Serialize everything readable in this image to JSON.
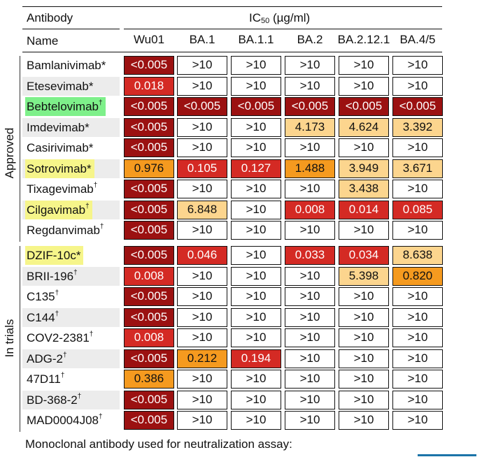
{
  "header": {
    "antibody_label": "Antibody",
    "ic50_label_main": "IC",
    "ic50_label_sub": "50",
    "ic50_label_unit": " (µg/ml)",
    "name_label": "Name"
  },
  "columns": [
    "Wu01",
    "BA.1",
    "BA.1.1",
    "BA.2",
    "BA.2.12.1",
    "BA.4/5"
  ],
  "groups": [
    {
      "label": "Approved",
      "rows": [
        {
          "name": "Bamlanivimab",
          "mark": "*",
          "sup": false,
          "highlight": "",
          "values": [
            "<0.005",
            ">10",
            ">10",
            ">10",
            ">10",
            ">10"
          ]
        },
        {
          "name": "Etesevimab",
          "mark": "*",
          "sup": false,
          "highlight": "",
          "values": [
            "0.018",
            ">10",
            ">10",
            ">10",
            ">10",
            ">10"
          ]
        },
        {
          "name": "Bebtelovimab",
          "mark": "†",
          "sup": true,
          "highlight": "green",
          "values": [
            "<0.005",
            "<0.005",
            "<0.005",
            "<0.005",
            "<0.005",
            "<0.005"
          ]
        },
        {
          "name": "Imdevimab",
          "mark": "*",
          "sup": false,
          "highlight": "",
          "values": [
            "<0.005",
            ">10",
            ">10",
            "4.173",
            "4.624",
            "3.392"
          ]
        },
        {
          "name": "Casirivimab",
          "mark": "*",
          "sup": false,
          "highlight": "",
          "values": [
            "<0.005",
            ">10",
            ">10",
            ">10",
            ">10",
            ">10"
          ]
        },
        {
          "name": "Sotrovimab",
          "mark": "*",
          "sup": false,
          "highlight": "yellow",
          "values": [
            "0.976",
            "0.105",
            "0.127",
            "1.488",
            "3.949",
            "3.671"
          ]
        },
        {
          "name": "Tixagevimab",
          "mark": "†",
          "sup": true,
          "highlight": "",
          "values": [
            "<0.005",
            ">10",
            ">10",
            ">10",
            "3.438",
            ">10"
          ]
        },
        {
          "name": "Cilgavimab",
          "mark": "†",
          "sup": true,
          "highlight": "yellow",
          "values": [
            "<0.005",
            "6.848",
            ">10",
            "0.008",
            "0.014",
            "0.085"
          ]
        },
        {
          "name": "Regdanvimab",
          "mark": "†",
          "sup": true,
          "highlight": "",
          "values": [
            "<0.005",
            ">10",
            ">10",
            ">10",
            ">10",
            ">10"
          ]
        }
      ]
    },
    {
      "label": "In trials",
      "rows": [
        {
          "name": "DZIF-10c",
          "mark": "*",
          "sup": false,
          "highlight": "yellow",
          "values": [
            "<0.005",
            "0.046",
            ">10",
            "0.033",
            "0.034",
            "8.638"
          ]
        },
        {
          "name": "BRII-196",
          "mark": "†",
          "sup": true,
          "highlight": "",
          "values": [
            "0.008",
            ">10",
            ">10",
            ">10",
            "5.398",
            "0.820"
          ]
        },
        {
          "name": "C135",
          "mark": "†",
          "sup": true,
          "highlight": "",
          "values": [
            "<0.005",
            ">10",
            ">10",
            ">10",
            ">10",
            ">10"
          ]
        },
        {
          "name": "C144",
          "mark": "†",
          "sup": true,
          "highlight": "",
          "values": [
            "<0.005",
            ">10",
            ">10",
            ">10",
            ">10",
            ">10"
          ]
        },
        {
          "name": "COV2-2381",
          "mark": "†",
          "sup": true,
          "highlight": "",
          "values": [
            "0.008",
            ">10",
            ">10",
            ">10",
            ">10",
            ">10"
          ]
        },
        {
          "name": "ADG-2",
          "mark": "†",
          "sup": true,
          "highlight": "",
          "values": [
            "<0.005",
            "0.212",
            "0.194",
            ">10",
            ">10",
            ">10"
          ]
        },
        {
          "name": "47D11",
          "mark": "†",
          "sup": true,
          "highlight": "",
          "values": [
            "0.386",
            ">10",
            ">10",
            ">10",
            ">10",
            ">10"
          ]
        },
        {
          "name": "BD-368-2",
          "mark": "†",
          "sup": true,
          "highlight": "",
          "values": [
            "<0.005",
            ">10",
            ">10",
            ">10",
            ">10",
            ">10"
          ]
        },
        {
          "name": "MAD0004J08",
          "mark": "†",
          "sup": true,
          "highlight": "",
          "values": [
            "<0.005",
            ">10",
            ">10",
            ">10",
            ">10",
            ">10"
          ]
        }
      ]
    }
  ],
  "cell_colors": {
    "dark_red": "#9b1111",
    "red": "#d42a24",
    "orange": "#f59a1f",
    "light_orange": "#fcd58e",
    "white": "#ffffff"
  },
  "footer": "Monoclonal antibody used for neutralization assay:",
  "accent_blue": "#1a73a8"
}
